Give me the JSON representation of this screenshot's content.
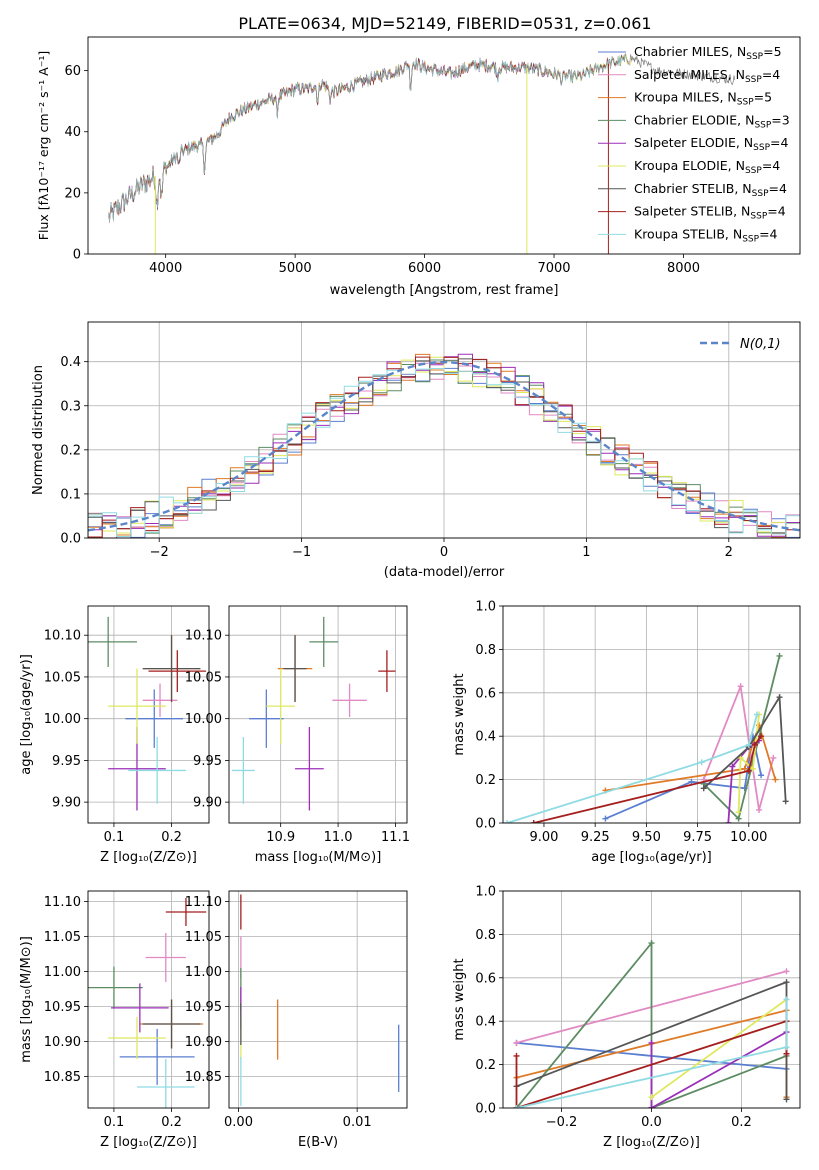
{
  "figure_title": "PLATE=0634, MJD=52149, FIBERID=0531, z=0.061",
  "colors": {
    "c1": "#5b7fd0",
    "c2": "#e18ac4",
    "c3": "#e07a26",
    "c4": "#5d8c63",
    "c5": "#9b2fb8",
    "c6": "#dfe85e",
    "c7": "#555555",
    "c8": "#a51f1f",
    "c9": "#8fdbe3",
    "gauss": "#5b85c9"
  },
  "chart_data": [
    {
      "id": "spectrum",
      "type": "line",
      "xlabel": "wavelength [Angstrom, rest frame]",
      "ylabel": "Flux [fλ10⁻¹⁷ erg cm⁻² s⁻¹ A⁻¹]",
      "xlim": [
        3400,
        8900
      ],
      "ylim": [
        0,
        71
      ],
      "xticks": [
        "4000",
        "5000",
        "6000",
        "7000",
        "8000"
      ],
      "yticks": [
        "0",
        "20",
        "40",
        "60"
      ],
      "legend_position": "top-right",
      "legend": [
        {
          "pre": "Chabrier MILES, N",
          "sub": "SSP",
          "post": "=5",
          "color": "c1"
        },
        {
          "pre": "Salpeter MILES, N",
          "sub": "SSP",
          "post": "=4",
          "color": "c2"
        },
        {
          "pre": "Kroupa MILES, N",
          "sub": "SSP",
          "post": "=5",
          "color": "c3"
        },
        {
          "pre": "Chabrier ELODIE, N",
          "sub": "SSP",
          "post": "=3",
          "color": "c4"
        },
        {
          "pre": "Salpeter ELODIE, N",
          "sub": "SSP",
          "post": "=4",
          "color": "c5"
        },
        {
          "pre": "Kroupa ELODIE, N",
          "sub": "SSP",
          "post": "=4",
          "color": "c6"
        },
        {
          "pre": "Chabrier STELIB, N",
          "sub": "SSP",
          "post": "=4",
          "color": "c7"
        },
        {
          "pre": "Salpeter STELIB, N",
          "sub": "SSP",
          "post": "=4",
          "color": "c8"
        },
        {
          "pre": "Kroupa STELIB, N",
          "sub": "SSP",
          "post": "=4",
          "color": "c9"
        }
      ],
      "continuum": [
        [
          3560,
          12
        ],
        [
          3700,
          18
        ],
        [
          3800,
          22
        ],
        [
          3900,
          25
        ],
        [
          4000,
          28
        ],
        [
          4100,
          33
        ],
        [
          4200,
          35
        ],
        [
          4300,
          36
        ],
        [
          4400,
          39
        ],
        [
          4500,
          45
        ],
        [
          4700,
          49
        ],
        [
          4900,
          52
        ],
        [
          5000,
          54
        ],
        [
          5100,
          54
        ],
        [
          5200,
          56
        ],
        [
          5300,
          53
        ],
        [
          5500,
          56
        ],
        [
          5700,
          59
        ],
        [
          5800,
          60
        ],
        [
          5900,
          63
        ],
        [
          6000,
          61
        ],
        [
          6200,
          59
        ],
        [
          6400,
          62
        ],
        [
          6600,
          61
        ],
        [
          6800,
          61
        ],
        [
          7000,
          59
        ],
        [
          7100,
          58
        ],
        [
          7200,
          58
        ],
        [
          7300,
          60
        ],
        [
          7400,
          62
        ],
        [
          7500,
          63
        ],
        [
          7600,
          64
        ],
        [
          7700,
          62
        ],
        [
          7800,
          60
        ],
        [
          8000,
          59
        ],
        [
          8200,
          58
        ],
        [
          8400,
          57
        ]
      ],
      "dips": [
        [
          3933,
          10
        ],
        [
          3968,
          9
        ],
        [
          4102,
          4
        ],
        [
          4300,
          8
        ],
        [
          4861,
          5
        ],
        [
          5175,
          6
        ],
        [
          5270,
          3
        ],
        [
          5893,
          8
        ],
        [
          6563,
          3
        ],
        [
          7060,
          2
        ]
      ],
      "drops": [
        {
          "x": 3920,
          "color": "c6"
        },
        {
          "x": 6790,
          "color": "c6"
        },
        {
          "x": 7420,
          "color": "c8"
        }
      ],
      "model_end": [
        7000,
        7600,
        7000,
        7600,
        7000,
        7600,
        7550,
        7500,
        7550
      ]
    },
    {
      "id": "residuals",
      "type": "step-histogram",
      "xlabel": "(data-model)/error",
      "ylabel": "Normed distribution",
      "xlim": [
        -2.5,
        2.5
      ],
      "ylim": [
        0,
        0.49
      ],
      "xticks": [
        "−2",
        "−1",
        "0",
        "1",
        "2"
      ],
      "yticks": [
        "0.0",
        "0.1",
        "0.2",
        "0.3",
        "0.4"
      ],
      "gauss_label": "N(0,1)",
      "legend_position": "top-right",
      "bin_width": 0.1,
      "grid": true
    },
    {
      "id": "age_vs_Z",
      "type": "errorbar",
      "xlabel": "Z [log₁₀(Z/Z⊙)]",
      "ylabel": "age  [log₁₀(age/yr)]",
      "xlim": [
        0.055,
        0.265
      ],
      "ylim": [
        9.875,
        10.135
      ],
      "xticks": [
        "0.1",
        "0.2"
      ],
      "xtickvals": [
        0.1,
        0.2
      ],
      "yticks": [
        "9.90",
        "9.95",
        "10.00",
        "10.05",
        "10.10"
      ],
      "ytickvals": [
        9.9,
        9.95,
        10.0,
        10.05,
        10.1
      ],
      "grid": true,
      "points": [
        {
          "x": 0.17,
          "y": 10.0,
          "dx": 0.05,
          "dy": 0.035,
          "color": "c1"
        },
        {
          "x": 0.18,
          "y": 10.022,
          "dx": 0.03,
          "dy": 0.02,
          "color": "c2"
        },
        {
          "x": 0.2,
          "y": 10.06,
          "dx": 0.05,
          "dy": 0.04,
          "color": "c3"
        },
        {
          "x": 0.09,
          "y": 10.092,
          "dx": 0.05,
          "dy": 0.03,
          "color": "c4"
        },
        {
          "x": 0.14,
          "y": 9.94,
          "dx": 0.05,
          "dy": 0.05,
          "color": "c5"
        },
        {
          "x": 0.14,
          "y": 10.015,
          "dx": 0.05,
          "dy": 0.045,
          "color": "c6"
        },
        {
          "x": 0.2,
          "y": 10.06,
          "dx": 0.05,
          "dy": 0.04,
          "color": "c7"
        },
        {
          "x": 0.21,
          "y": 10.057,
          "dx": 0.05,
          "dy": 0.025,
          "color": "c8"
        },
        {
          "x": 0.175,
          "y": 9.938,
          "dx": 0.05,
          "dy": 0.04,
          "color": "c9"
        }
      ]
    },
    {
      "id": "age_vs_mass",
      "type": "errorbar",
      "xlabel": "mass [log₁₀(M/M⊙)]",
      "ylabel": "",
      "xlim": [
        10.81,
        11.12
      ],
      "ylim": [
        9.875,
        10.135
      ],
      "xticks": [
        "10.9",
        "11.0",
        "11.1"
      ],
      "xtickvals": [
        10.9,
        11.0,
        11.1
      ],
      "yticks": [
        "9.90",
        "9.95",
        "10.00",
        "10.05",
        "10.10"
      ],
      "ytickvals": [
        9.9,
        9.95,
        10.0,
        10.05,
        10.1
      ],
      "grid": true,
      "points": [
        {
          "x": 10.875,
          "y": 10.0,
          "dx": 0.03,
          "dy": 0.035,
          "color": "c1"
        },
        {
          "x": 11.02,
          "y": 10.022,
          "dx": 0.03,
          "dy": 0.02,
          "color": "c2"
        },
        {
          "x": 10.925,
          "y": 10.06,
          "dx": 0.03,
          "dy": 0.04,
          "color": "c3"
        },
        {
          "x": 10.975,
          "y": 10.092,
          "dx": 0.025,
          "dy": 0.03,
          "color": "c4"
        },
        {
          "x": 10.95,
          "y": 9.94,
          "dx": 0.025,
          "dy": 0.05,
          "color": "c5"
        },
        {
          "x": 10.9,
          "y": 10.015,
          "dx": 0.025,
          "dy": 0.045,
          "color": "c6"
        },
        {
          "x": 10.925,
          "y": 10.06,
          "dx": 0.02,
          "dy": 0.04,
          "color": "c7"
        },
        {
          "x": 11.085,
          "y": 10.057,
          "dx": 0.015,
          "dy": 0.025,
          "color": "c8"
        },
        {
          "x": 10.835,
          "y": 9.938,
          "dx": 0.02,
          "dy": 0.04,
          "color": "c9"
        }
      ]
    },
    {
      "id": "weight_vs_age",
      "type": "line",
      "xlabel": "age  [log₁₀(age/yr)]",
      "ylabel": "mass weight",
      "xlim": [
        8.8,
        10.25
      ],
      "ylim": [
        0,
        1.0
      ],
      "xticks": [
        "9.00",
        "9.25",
        "9.50",
        "9.75",
        "10.00"
      ],
      "xtickvals": [
        9.0,
        9.25,
        9.5,
        9.75,
        10.0
      ],
      "yticks": [
        "0.0",
        "0.2",
        "0.4",
        "0.6",
        "0.8",
        "1.0"
      ],
      "ytickvals": [
        0,
        0.2,
        0.4,
        0.6,
        0.8,
        1.0
      ],
      "grid": true,
      "series": [
        {
          "color": "c1",
          "points": [
            [
              9.3,
              0.02
            ],
            [
              9.72,
              0.19
            ],
            [
              9.98,
              0.16
            ],
            [
              10.02,
              0.4
            ],
            [
              10.06,
              0.22
            ]
          ]
        },
        {
          "color": "c2",
          "points": [
            [
              9.78,
              0.2
            ],
            [
              9.96,
              0.63
            ],
            [
              10.05,
              0.06
            ],
            [
              10.12,
              0.3
            ]
          ]
        },
        {
          "color": "c3",
          "points": [
            [
              9.3,
              0.15
            ],
            [
              9.98,
              0.25
            ],
            [
              10.05,
              0.45
            ],
            [
              10.13,
              0.2
            ]
          ]
        },
        {
          "color": "c4",
          "points": [
            [
              9.78,
              0.18
            ],
            [
              9.95,
              0.02
            ],
            [
              10.15,
              0.77
            ]
          ]
        },
        {
          "color": "c5",
          "points": [
            [
              9.9,
              0.0
            ],
            [
              9.92,
              0.26
            ],
            [
              10.0,
              0.35
            ],
            [
              10.05,
              0.38
            ]
          ]
        },
        {
          "color": "c6",
          "points": [
            [
              9.95,
              0.05
            ],
            [
              9.96,
              0.3
            ],
            [
              10.02,
              0.25
            ],
            [
              10.05,
              0.5
            ]
          ]
        },
        {
          "color": "c7",
          "points": [
            [
              9.78,
              0.16
            ],
            [
              10.0,
              0.35
            ],
            [
              10.15,
              0.58
            ],
            [
              10.18,
              0.1
            ]
          ]
        },
        {
          "color": "c8",
          "points": [
            [
              8.95,
              0.0
            ],
            [
              10.0,
              0.24
            ],
            [
              10.03,
              0.36
            ],
            [
              10.06,
              0.4
            ]
          ]
        },
        {
          "color": "c9",
          "points": [
            [
              8.82,
              0.0
            ],
            [
              9.77,
              0.28
            ],
            [
              10.0,
              0.36
            ],
            [
              10.04,
              0.5
            ]
          ]
        }
      ]
    },
    {
      "id": "mass_vs_Z",
      "type": "errorbar",
      "xlabel": "Z [log₁₀(Z/Z⊙)]",
      "ylabel": "mass [log₁₀(M/M⊙)]",
      "xlim": [
        0.055,
        0.265
      ],
      "ylim": [
        10.805,
        11.115
      ],
      "xticks": [
        "0.1",
        "0.2"
      ],
      "xtickvals": [
        0.1,
        0.2
      ],
      "yticks": [
        "10.85",
        "10.90",
        "10.95",
        "11.00",
        "11.05",
        "11.10"
      ],
      "ytickvals": [
        10.85,
        10.9,
        10.95,
        11.0,
        11.05,
        11.1
      ],
      "grid": true,
      "points": [
        {
          "x": 0.175,
          "y": 10.878,
          "dx": 0.065,
          "dy": 0.04,
          "color": "c1"
        },
        {
          "x": 0.19,
          "y": 11.02,
          "dx": 0.035,
          "dy": 0.035,
          "color": "c2"
        },
        {
          "x": 0.2,
          "y": 10.925,
          "dx": 0.055,
          "dy": 0.035,
          "color": "c3"
        },
        {
          "x": 0.1,
          "y": 10.977,
          "dx": 0.05,
          "dy": 0.03,
          "color": "c4"
        },
        {
          "x": 0.145,
          "y": 10.948,
          "dx": 0.05,
          "dy": 0.035,
          "color": "c5"
        },
        {
          "x": 0.14,
          "y": 10.905,
          "dx": 0.05,
          "dy": 0.03,
          "color": "c6"
        },
        {
          "x": 0.2,
          "y": 10.925,
          "dx": 0.05,
          "dy": 0.035,
          "color": "c7"
        },
        {
          "x": 0.225,
          "y": 11.085,
          "dx": 0.035,
          "dy": 0.02,
          "color": "c8"
        },
        {
          "x": 0.19,
          "y": 10.835,
          "dx": 0.05,
          "dy": 0.04,
          "color": "c9"
        }
      ]
    },
    {
      "id": "mass_vs_ebv",
      "type": "errorbar",
      "xlabel": "E(B-V)",
      "ylabel": "",
      "xlim": [
        -0.0008,
        0.0142
      ],
      "ylim": [
        10.805,
        11.115
      ],
      "xticks": [
        "0.00",
        "0.01"
      ],
      "xtickvals": [
        0.0,
        0.01
      ],
      "yticks": [
        "10.85",
        "10.90",
        "10.95",
        "11.00",
        "11.05",
        "11.10"
      ],
      "ytickvals": [
        10.85,
        10.9,
        10.95,
        11.0,
        11.05,
        11.1
      ],
      "grid": true,
      "points": [
        {
          "x": 0.0135,
          "y": 10.876,
          "dx": 0,
          "dy": 0.048,
          "color": "c1"
        },
        {
          "x": 0.0002,
          "y": 11.02,
          "dx": 0,
          "dy": 0.03,
          "color": "c2"
        },
        {
          "x": 0.0033,
          "y": 10.917,
          "dx": 0,
          "dy": 0.043,
          "color": "c3"
        },
        {
          "x": 0.0002,
          "y": 10.975,
          "dx": 0,
          "dy": 0.03,
          "color": "c4"
        },
        {
          "x": 0.0002,
          "y": 10.948,
          "dx": 0,
          "dy": 0.03,
          "color": "c5"
        },
        {
          "x": 0.0002,
          "y": 10.905,
          "dx": 0,
          "dy": 0.03,
          "color": "c6"
        },
        {
          "x": 0.0002,
          "y": 10.925,
          "dx": 0,
          "dy": 0.03,
          "color": "c7"
        },
        {
          "x": 0.0002,
          "y": 11.085,
          "dx": 0,
          "dy": 0.025,
          "color": "c8"
        },
        {
          "x": 0.0002,
          "y": 10.843,
          "dx": 0,
          "dy": 0.035,
          "color": "c9"
        }
      ]
    },
    {
      "id": "weight_vs_Z",
      "type": "line",
      "xlabel": "Z [log₁₀(Z/Z⊙)]",
      "ylabel": "mass weight",
      "xlim": [
        -0.33,
        0.33
      ],
      "ylim": [
        0,
        1.0
      ],
      "xticks": [
        "−0.2",
        "0.0",
        "0.2"
      ],
      "xtickvals": [
        -0.2,
        0.0,
        0.2
      ],
      "yticks": [
        "0.0",
        "0.2",
        "0.4",
        "0.6",
        "0.8",
        "1.0"
      ],
      "ytickvals": [
        0,
        0.2,
        0.4,
        0.6,
        0.8,
        1.0
      ],
      "grid": true,
      "series": [
        {
          "color": "c1",
          "points": [
            [
              -0.3,
              0.3
            ],
            [
              0.3,
              0.18
            ]
          ]
        },
        {
          "color": "c2",
          "points": [
            [
              -0.3,
              0.3
            ],
            [
              0.3,
              0.63
            ]
          ]
        },
        {
          "color": "c3",
          "points": [
            [
              -0.3,
              0.14
            ],
            [
              0.3,
              0.45
            ],
            [
              0.3,
              0.05
            ]
          ]
        },
        {
          "color": "c4",
          "points": [
            [
              -0.3,
              0.0
            ],
            [
              0.0,
              0.76
            ],
            [
              0.0,
              0.0
            ],
            [
              0.3,
              0.24
            ]
          ]
        },
        {
          "color": "c5",
          "points": [
            [
              0.0,
              0.0
            ],
            [
              0.0,
              0.3
            ],
            [
              0.0,
              0.0
            ],
            [
              0.3,
              0.35
            ]
          ]
        },
        {
          "color": "c6",
          "points": [
            [
              0.0,
              0.05
            ],
            [
              0.3,
              0.5
            ]
          ]
        },
        {
          "color": "c7",
          "points": [
            [
              -0.3,
              0.1
            ],
            [
              0.3,
              0.58
            ],
            [
              0.3,
              0.04
            ]
          ]
        },
        {
          "color": "c8",
          "points": [
            [
              -0.3,
              0.24
            ],
            [
              -0.3,
              0.0
            ],
            [
              0.3,
              0.4
            ],
            [
              0.3,
              0.25
            ]
          ]
        },
        {
          "color": "c9",
          "points": [
            [
              -0.3,
              0.0
            ],
            [
              0.3,
              0.28
            ],
            [
              0.3,
              0.5
            ]
          ]
        }
      ]
    }
  ]
}
